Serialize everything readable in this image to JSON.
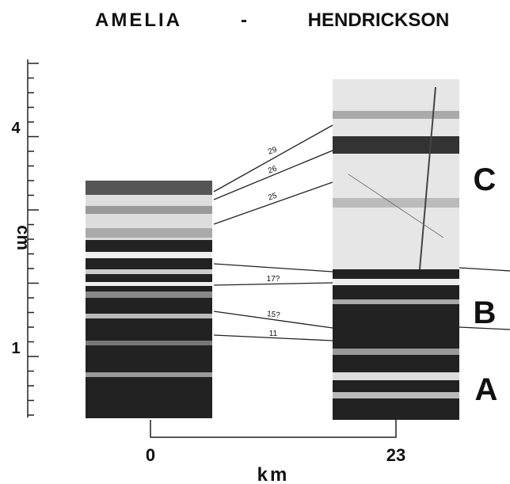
{
  "title": {
    "left": "AMELIA",
    "separator": "-",
    "right": "HENDRICKSON"
  },
  "scale": {
    "label": "cm",
    "ticks": [
      "4",
      "1"
    ]
  },
  "correlations": [
    "29",
    "26",
    "25",
    "17?",
    "15?",
    "11"
  ],
  "zones": [
    "C",
    "B",
    "A"
  ],
  "distance": {
    "label": "km",
    "sites": [
      "0",
      "23"
    ]
  }
}
